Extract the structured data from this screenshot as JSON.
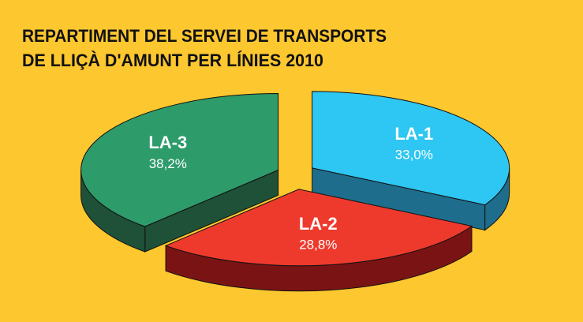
{
  "chart_data": {
    "type": "pie3d",
    "title": [
      "REPARTIMENT DEL SERVEI DE TRANSPORTS",
      "DE LLIÇÀ D'AMUNT PER LÍNIES 2010"
    ],
    "categories": [
      "LA-1",
      "LA-2",
      "LA-3"
    ],
    "values": [
      33.0,
      28.8,
      38.2
    ],
    "value_labels": [
      "33,0%",
      "28,8%",
      "38,2%"
    ],
    "colors": [
      "#2ec6f2",
      "#ee3a2d",
      "#2e9b6b"
    ],
    "side_colors": [
      "#1f6d8c",
      "#7a1414",
      "#1e5138"
    ],
    "background": "#fdc72f"
  }
}
